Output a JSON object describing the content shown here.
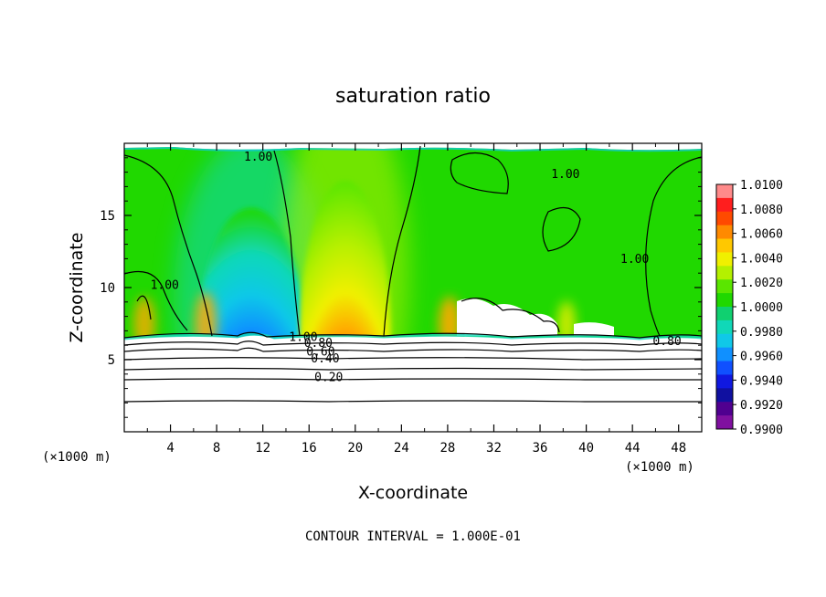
{
  "chart_data": {
    "type": "heatmap",
    "title": "saturation ratio",
    "xlabel": "X-coordinate",
    "ylabel": "Z-coordinate",
    "x_unit": "(×1000 m)",
    "y_unit": "(×1000 m)",
    "xlim": [
      0,
      50
    ],
    "ylim": [
      0,
      20
    ],
    "x_ticks": [
      4,
      8,
      12,
      16,
      20,
      24,
      28,
      32,
      36,
      40,
      44,
      48
    ],
    "y_ticks": [
      5,
      10,
      15
    ],
    "footer": "CONTOUR INTERVAL = 1.000E-01",
    "colorbar": {
      "levels": [
        "1.0100",
        "1.0080",
        "1.0060",
        "1.0040",
        "1.0020",
        "1.0000",
        "0.9980",
        "0.9960",
        "0.9940",
        "0.9920",
        "0.9900"
      ],
      "colors": [
        "#ff8a8a",
        "#ff1e1e",
        "#ff4a00",
        "#ff8a00",
        "#ffc800",
        "#f0f000",
        "#b4f000",
        "#5ae600",
        "#20d800",
        "#10d070",
        "#10d8b8",
        "#10c8e8",
        "#1090ff",
        "#1050ff",
        "#1018e0",
        "#1010a0",
        "#500090",
        "#8010a0"
      ]
    },
    "contour_labels": [
      {
        "text": "1.00",
        "x": 11.6,
        "z": 18.8
      },
      {
        "text": "1.00",
        "x": 38.2,
        "z": 17.6
      },
      {
        "text": "1.00",
        "x": 3.5,
        "z": 9.9
      },
      {
        "text": "1.00",
        "x": 44.2,
        "z": 11.7
      },
      {
        "text": "1.00",
        "x": 15.5,
        "z": 6.3
      },
      {
        "text": "0.80",
        "x": 16.8,
        "z": 5.9
      },
      {
        "text": "0.60",
        "x": 17.0,
        "z": 5.3
      },
      {
        "text": "0.40",
        "x": 17.4,
        "z": 4.8
      },
      {
        "text": "0.20",
        "x": 17.7,
        "z": 3.5
      },
      {
        "text": "0.80",
        "x": 47.0,
        "z": 6.0
      }
    ]
  }
}
